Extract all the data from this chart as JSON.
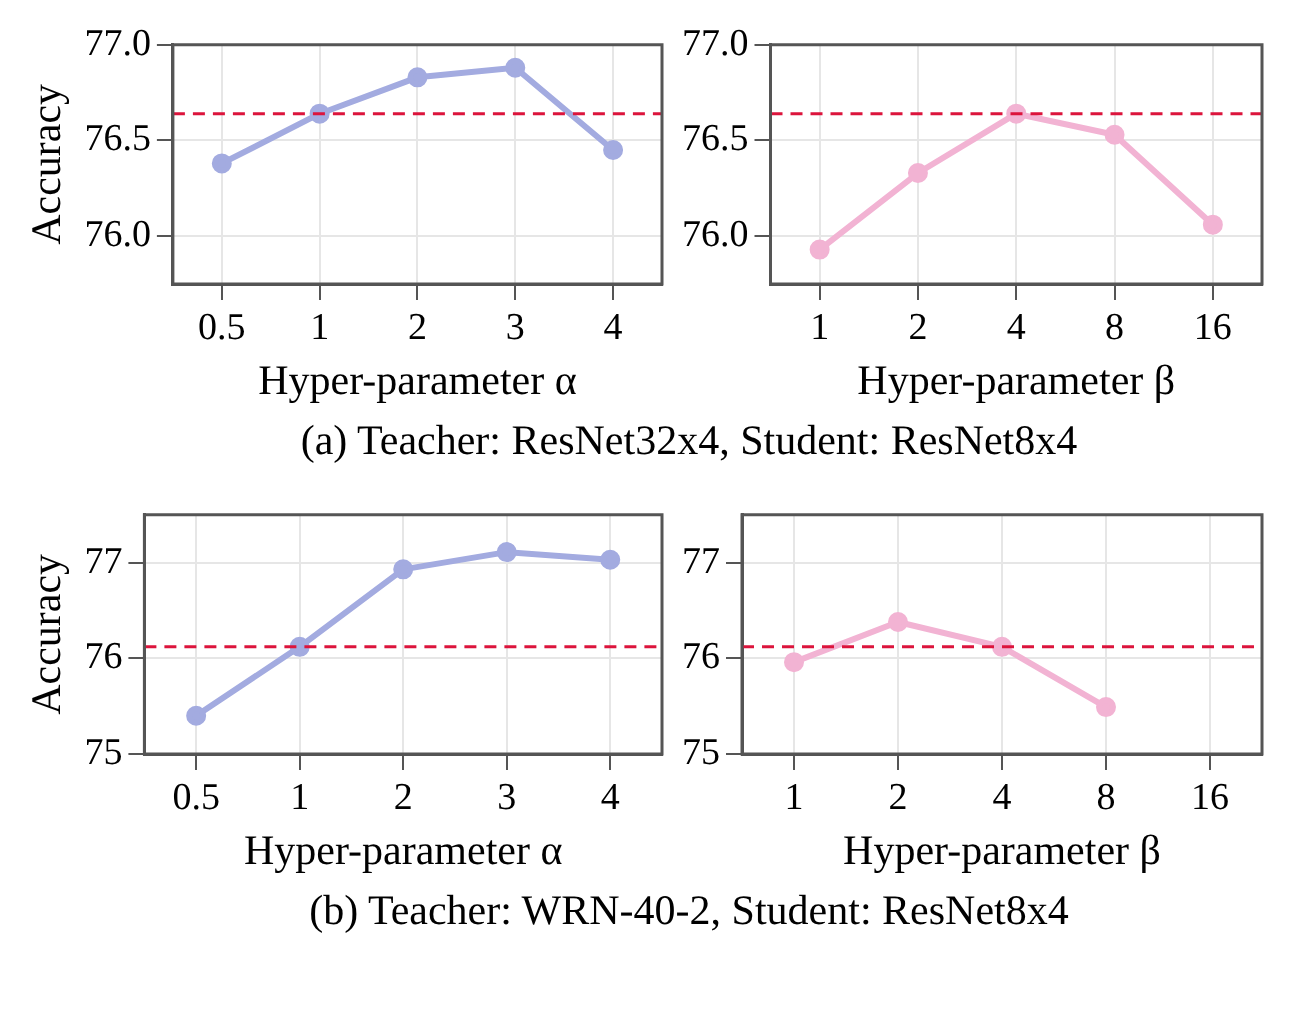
{
  "chart_data": [
    {
      "type": "line",
      "categories": [
        "0.5",
        "1",
        "2",
        "3",
        "4"
      ],
      "xlabel": "Hyper-parameter α",
      "ylabel": "Accuracy",
      "ylim": [
        75.75,
        77.0
      ],
      "yticks": [
        {
          "value": 76.0,
          "label": "76.0"
        },
        {
          "value": 76.5,
          "label": "76.5"
        },
        {
          "value": 77.0,
          "label": "77.0"
        }
      ],
      "grid": true,
      "marker": "circle",
      "line_style": "solid",
      "series": [
        {
          "color": "#a3abe0",
          "values": [
            76.38,
            76.64,
            76.83,
            76.88,
            76.45
          ]
        }
      ],
      "ref_lines": [
        {
          "axis": "y",
          "value": 76.64,
          "color": "#dc143c",
          "line_style": "dashed"
        }
      ],
      "annotations": [
        "(a) Teacher: ResNet32x4, Student: ResNet8x4"
      ]
    },
    {
      "type": "line",
      "categories": [
        "1",
        "2",
        "4",
        "8",
        "16"
      ],
      "xlabel": "Hyper-parameter β",
      "ylim": [
        75.75,
        77.0
      ],
      "yticks": [
        {
          "value": 76.0,
          "label": "76.0"
        },
        {
          "value": 76.5,
          "label": "76.5"
        },
        {
          "value": 77.0,
          "label": "77.0"
        }
      ],
      "grid": true,
      "marker": "circle",
      "line_style": "solid",
      "series": [
        {
          "color": "#f2b3d3",
          "values": [
            75.93,
            76.33,
            76.64,
            76.53,
            76.06
          ]
        }
      ],
      "ref_lines": [
        {
          "axis": "y",
          "value": 76.64,
          "color": "#dc143c",
          "line_style": "dashed"
        }
      ]
    },
    {
      "type": "line",
      "categories": [
        "0.5",
        "1",
        "2",
        "3",
        "4"
      ],
      "xlabel": "Hyper-parameter α",
      "ylabel": "Accuracy",
      "ylim": [
        75.0,
        77.5
      ],
      "yticks": [
        75,
        76,
        77
      ],
      "grid": true,
      "marker": "circle",
      "line_style": "solid",
      "series": [
        {
          "color": "#a3abe0",
          "values": [
            75.4,
            76.12,
            76.93,
            77.11,
            77.03
          ]
        }
      ],
      "ref_lines": [
        {
          "axis": "y",
          "value": 76.12,
          "color": "#dc143c",
          "line_style": "dashed"
        }
      ],
      "annotations": [
        "(b) Teacher: WRN-40-2, Student: ResNet8x4"
      ]
    },
    {
      "type": "line",
      "categories": [
        "1",
        "2",
        "4",
        "8",
        "16"
      ],
      "xlabel": "Hyper-parameter β",
      "ylim": [
        75.0,
        77.5
      ],
      "yticks": [
        75,
        76,
        77
      ],
      "grid": true,
      "marker": "circle",
      "line_style": "solid",
      "series": [
        {
          "color": "#f2b3d3",
          "values": [
            75.96,
            76.38,
            76.12,
            75.49,
            null
          ]
        }
      ],
      "ref_lines": [
        {
          "axis": "y",
          "value": 76.12,
          "color": "#dc143c",
          "line_style": "dashed"
        }
      ]
    }
  ]
}
